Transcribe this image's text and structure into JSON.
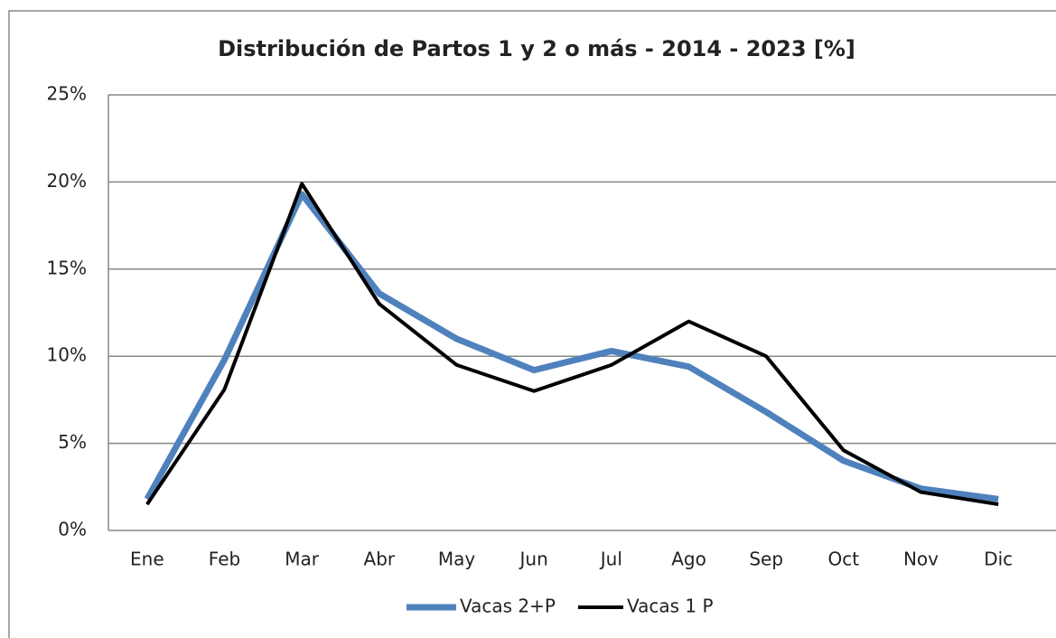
{
  "chart_data": {
    "type": "line",
    "title": "Distribución de Partos 1 y 2 o más  - 2014 - 2023 [%]",
    "categories": [
      "Ene",
      "Feb",
      "Mar",
      "Abr",
      "May",
      "Jun",
      "Jul",
      "Ago",
      "Sep",
      "Oct",
      "Nov",
      "Dic"
    ],
    "series": [
      {
        "name": "Vacas 2+P",
        "color": "#4f81bd",
        "values": [
          1.8,
          9.8,
          19.3,
          13.6,
          11.0,
          9.2,
          10.3,
          9.4,
          6.8,
          4.0,
          2.4,
          1.8
        ]
      },
      {
        "name": "Vacas 1 P",
        "color": "#000000",
        "values": [
          1.5,
          8.1,
          19.9,
          13.0,
          9.5,
          8.0,
          9.5,
          12.0,
          10.0,
          4.6,
          2.2,
          1.5
        ]
      }
    ],
    "ylim": [
      0,
      25
    ],
    "yticks": [
      {
        "value": 0,
        "label": "0%"
      },
      {
        "value": 5,
        "label": "5%"
      },
      {
        "value": 10,
        "label": "10%"
      },
      {
        "value": 15,
        "label": "15%"
      },
      {
        "value": 20,
        "label": "20%"
      },
      {
        "value": 25,
        "label": "25%"
      }
    ],
    "grid": true,
    "legend": "bottom"
  }
}
